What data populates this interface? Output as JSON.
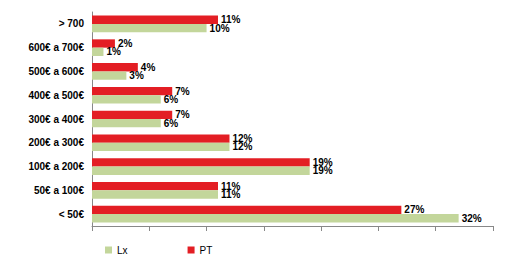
{
  "chart_data": {
    "type": "bar",
    "orientation": "horizontal",
    "categories": [
      "< 50€",
      "50€ a 100€",
      "100€ a 200€",
      "200€ a 300€",
      "300€ a 400€",
      "400€ a 500€",
      "500€ a 600€",
      "600€ a 700€",
      "> 700"
    ],
    "series": [
      {
        "name": "Lx",
        "color": "#c3d69b",
        "values": [
          32,
          11,
          19,
          12,
          6,
          6,
          3,
          1,
          10
        ],
        "value_labels": [
          "32%",
          "11%",
          "19%",
          "12%",
          "6%",
          "6%",
          "3%",
          "1%",
          "10%"
        ]
      },
      {
        "name": "PT",
        "color": "#e31e24",
        "values": [
          27,
          11,
          19,
          12,
          7,
          7,
          4,
          2,
          11
        ],
        "value_labels": [
          "27%",
          "11%",
          "19%",
          "12%",
          "7%",
          "7%",
          "4%",
          "2%",
          "11%"
        ]
      }
    ],
    "xlim": [
      0,
      35
    ],
    "xticks": [
      0,
      5,
      10,
      15,
      20,
      25,
      30,
      35
    ],
    "grid": false,
    "legend": "bottom-left",
    "data_labels": true,
    "tick_labels": "y"
  }
}
